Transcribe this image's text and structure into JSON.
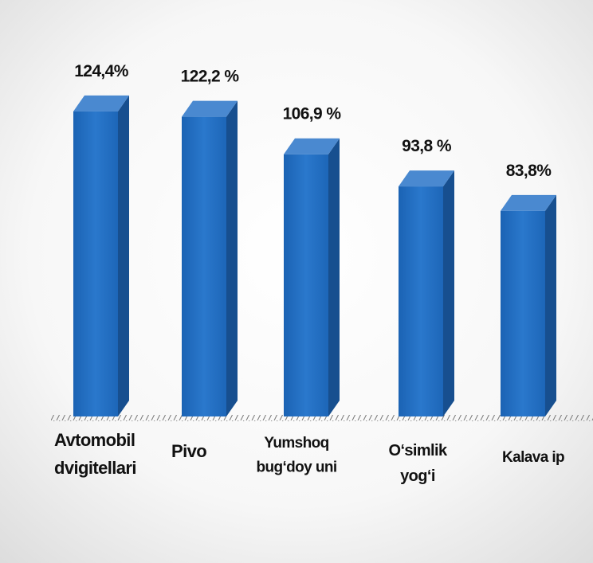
{
  "chart_data": {
    "type": "bar3d",
    "categories": [
      "Avtomobil\ndvigitellari",
      "Pivo",
      "Yumshoq\nbug‘doy uni",
      "O‘simlik\nyog‘i",
      "Kalava ip"
    ],
    "values": [
      124.4,
      122.2,
      106.9,
      93.8,
      83.8
    ],
    "value_labels": [
      "124,4%",
      "122,2 %",
      "106,9 %",
      "93,8 %",
      "83,8%"
    ],
    "color": "#1f6bbf"
  }
}
